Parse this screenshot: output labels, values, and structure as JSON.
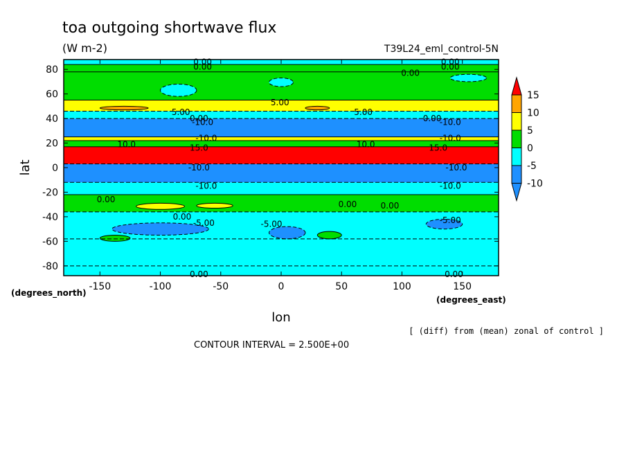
{
  "chart_data": {
    "type": "heatmap",
    "title": "toa outgoing shortwave flux",
    "units": "(W m-2)",
    "run_label": "T39L24_eml_control-5N",
    "xlabel": "lon",
    "ylabel": "lat",
    "x_units_label": "(degrees_east)",
    "y_units_label": "(degrees_north)",
    "xlim": [
      -180,
      180
    ],
    "ylim": [
      -88,
      88
    ],
    "x_ticks": [
      -150,
      -100,
      -50,
      0,
      50,
      100,
      150
    ],
    "x_tick_labels": [
      "-150",
      "-100",
      "-50",
      "0",
      "50",
      "100",
      "150"
    ],
    "y_ticks": [
      -80,
      -60,
      -40,
      -20,
      0,
      20,
      40,
      60,
      80
    ],
    "y_tick_labels": [
      "-80",
      "-60",
      "-40",
      "-20",
      "0",
      "20",
      "40",
      "60",
      "80"
    ],
    "note": "[ (diff) from (mean) zonal of control ]",
    "contour_interval_text": "CONTOUR INTERVAL = 2.500E+00",
    "colorbar": {
      "levels": [
        -10,
        -5,
        0,
        5,
        10,
        15
      ],
      "tick_labels": [
        "-10",
        "-5",
        "0",
        "5",
        "10",
        "15"
      ],
      "colors": [
        "#1e90ff",
        "#00ffff",
        "#00dd00",
        "#ffff00",
        "#ffa500",
        "#ff0000"
      ]
    },
    "bands": [
      {
        "lat_min": -88,
        "lat_max": -80,
        "value": -5
      },
      {
        "lat_min": -80,
        "lat_max": -58,
        "value": -5
      },
      {
        "lat_min": -58,
        "lat_max": -36,
        "value": -5
      },
      {
        "lat_min": -36,
        "lat_max": -22,
        "value": 0
      },
      {
        "lat_min": -22,
        "lat_max": -12,
        "value": -5
      },
      {
        "lat_min": -12,
        "lat_max": 3,
        "value": -10
      },
      {
        "lat_min": 3,
        "lat_max": 17,
        "value": 15
      },
      {
        "lat_min": 17,
        "lat_max": 22,
        "value": 0
      },
      {
        "lat_min": 22,
        "lat_max": 25,
        "value": 5
      },
      {
        "lat_min": 25,
        "lat_max": 40,
        "value": -10
      },
      {
        "lat_min": 40,
        "lat_max": 46,
        "value": -5
      },
      {
        "lat_min": 46,
        "lat_max": 55,
        "value": 5
      },
      {
        "lat_min": 55,
        "lat_max": 78,
        "value": 0
      },
      {
        "lat_min": 78,
        "lat_max": 84,
        "value": 0
      },
      {
        "lat_min": 84,
        "lat_max": 88,
        "value": -5
      }
    ],
    "patches": [
      {
        "lon_min": -100,
        "lon_max": -70,
        "lat_min": 58,
        "lat_max": 68,
        "value": -5
      },
      {
        "lon_min": -10,
        "lon_max": 10,
        "lat_min": 66,
        "lat_max": 73,
        "value": -5
      },
      {
        "lon_min": 140,
        "lon_max": 170,
        "lat_min": 70,
        "lat_max": 76,
        "value": -5
      },
      {
        "lon_min": -150,
        "lon_max": -110,
        "lat_min": 47,
        "lat_max": 50,
        "value": 10
      },
      {
        "lon_min": 20,
        "lon_max": 40,
        "lat_min": 47,
        "lat_max": 50,
        "value": 10
      },
      {
        "lon_min": -140,
        "lon_max": -60,
        "lat_min": -55,
        "lat_max": -45,
        "value": -10
      },
      {
        "lon_min": -10,
        "lon_max": 20,
        "lat_min": -58,
        "lat_max": -48,
        "value": -10
      },
      {
        "lon_min": 120,
        "lon_max": 150,
        "lat_min": -50,
        "lat_max": -42,
        "value": -10
      },
      {
        "lon_min": -150,
        "lon_max": -125,
        "lat_min": -60,
        "lat_max": -55,
        "value": 0
      },
      {
        "lon_min": 30,
        "lon_max": 50,
        "lat_min": -58,
        "lat_max": -52,
        "value": 0
      },
      {
        "lon_min": -120,
        "lon_max": -80,
        "lat_min": -34,
        "lat_max": -29,
        "value": 5
      },
      {
        "lon_min": -70,
        "lon_max": -40,
        "lat_min": -33,
        "lat_max": -29,
        "value": 5
      }
    ],
    "contour_labels": [
      {
        "text": "0.00",
        "lon": -65,
        "lat": 86
      },
      {
        "text": "0.00",
        "lon": -65,
        "lat": 82
      },
      {
        "text": "0.00",
        "lon": 140,
        "lat": 86
      },
      {
        "text": "0.00",
        "lon": 140,
        "lat": 82
      },
      {
        "text": "0.00",
        "lon": 107,
        "lat": 77
      },
      {
        "text": "5.00",
        "lon": -1,
        "lat": 53
      },
      {
        "text": "5.00",
        "lon": -83,
        "lat": 45
      },
      {
        "text": "5.00",
        "lon": 68,
        "lat": 45
      },
      {
        "text": "0.00",
        "lon": -68,
        "lat": 40
      },
      {
        "text": "0.00",
        "lon": 125,
        "lat": 40
      },
      {
        "text": "-10.0",
        "lon": -65,
        "lat": 37
      },
      {
        "text": "-10.0",
        "lon": 140,
        "lat": 37
      },
      {
        "text": "-10.0",
        "lon": -62,
        "lat": 24
      },
      {
        "text": "-10.0",
        "lon": 140,
        "lat": 24
      },
      {
        "text": "15.0",
        "lon": -68,
        "lat": 16
      },
      {
        "text": "15.0",
        "lon": 130,
        "lat": 16
      },
      {
        "text": "10.0",
        "lon": -128,
        "lat": 19
      },
      {
        "text": "10.0",
        "lon": 70,
        "lat": 19
      },
      {
        "text": "-10.0",
        "lon": -68,
        "lat": 0
      },
      {
        "text": "-10.0",
        "lon": 145,
        "lat": 0
      },
      {
        "text": "-10.0",
        "lon": -62,
        "lat": -15
      },
      {
        "text": "-10.0",
        "lon": 140,
        "lat": -15
      },
      {
        "text": "0.00",
        "lon": -145,
        "lat": -26
      },
      {
        "text": "0.00",
        "lon": 55,
        "lat": -30
      },
      {
        "text": "0.00",
        "lon": 90,
        "lat": -31
      },
      {
        "text": "0.00",
        "lon": -82,
        "lat": -40
      },
      {
        "text": "-5.00",
        "lon": -64,
        "lat": -45
      },
      {
        "text": "-5.00",
        "lon": -8,
        "lat": -46
      },
      {
        "text": "-5.00",
        "lon": 140,
        "lat": -43
      },
      {
        "text": "0.00",
        "lon": -68,
        "lat": -87
      },
      {
        "text": "0.00",
        "lon": 143,
        "lat": -87
      }
    ]
  }
}
